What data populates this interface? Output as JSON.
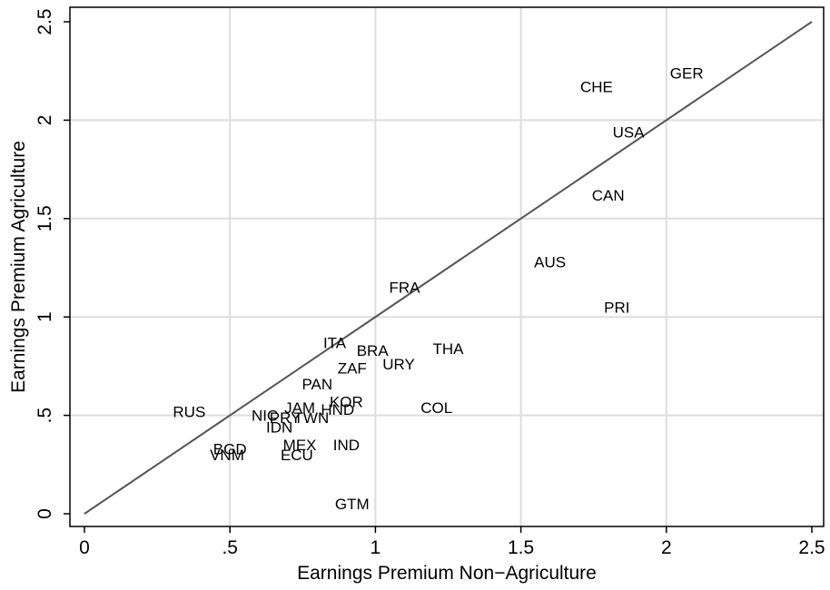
{
  "chart_data": {
    "type": "scatter",
    "xlabel": "Earnings Premium Non−Agriculture",
    "ylabel": "Earnings Premium Agriculture",
    "xlim": [
      0,
      2.5
    ],
    "ylim": [
      0,
      2.5
    ],
    "x_ticks": [
      0,
      0.5,
      1,
      1.5,
      2,
      2.5
    ],
    "x_tick_labels": [
      "0",
      ".5",
      "1",
      "1.5",
      "2",
      "2.5"
    ],
    "y_ticks": [
      0,
      0.5,
      1,
      1.5,
      2,
      2.5
    ],
    "y_tick_labels": [
      "0",
      ".5",
      "1",
      "1.5",
      "2",
      "2.5"
    ],
    "grid": "horizontal and vertical at ticks",
    "reference_line": {
      "type": "45-degree",
      "from": [
        0,
        0
      ],
      "to": [
        2.5,
        2.5
      ]
    },
    "colors": {
      "line": "#555555",
      "grid": "#dddddd",
      "frame": "#000000"
    },
    "points": [
      {
        "label": "GER",
        "x": 2.07,
        "y": 2.24
      },
      {
        "label": "CHE",
        "x": 1.76,
        "y": 2.17
      },
      {
        "label": "USA",
        "x": 1.87,
        "y": 1.94
      },
      {
        "label": "CAN",
        "x": 1.8,
        "y": 1.62
      },
      {
        "label": "AUS",
        "x": 1.6,
        "y": 1.28
      },
      {
        "label": "PRI",
        "x": 1.83,
        "y": 1.05
      },
      {
        "label": "FRA",
        "x": 1.1,
        "y": 1.15
      },
      {
        "label": "ITA",
        "x": 0.86,
        "y": 0.87
      },
      {
        "label": "BRA",
        "x": 0.99,
        "y": 0.83
      },
      {
        "label": "THA",
        "x": 1.25,
        "y": 0.84
      },
      {
        "label": "ZAF",
        "x": 0.92,
        "y": 0.74
      },
      {
        "label": "URY",
        "x": 1.08,
        "y": 0.76
      },
      {
        "label": "PAN",
        "x": 0.8,
        "y": 0.66
      },
      {
        "label": "KOR",
        "x": 0.9,
        "y": 0.57
      },
      {
        "label": "COL",
        "x": 1.21,
        "y": 0.54
      },
      {
        "label": "RUS",
        "x": 0.36,
        "y": 0.52
      },
      {
        "label": "JAM",
        "x": 0.74,
        "y": 0.54
      },
      {
        "label": "HND",
        "x": 0.87,
        "y": 0.53
      },
      {
        "label": "NIC",
        "x": 0.62,
        "y": 0.5
      },
      {
        "label": "PRY",
        "x": 0.69,
        "y": 0.49
      },
      {
        "label": "TWN",
        "x": 0.78,
        "y": 0.49
      },
      {
        "label": "IDN",
        "x": 0.67,
        "y": 0.44
      },
      {
        "label": "MEX",
        "x": 0.74,
        "y": 0.35
      },
      {
        "label": "IND",
        "x": 0.9,
        "y": 0.35
      },
      {
        "label": "BGD",
        "x": 0.5,
        "y": 0.33
      },
      {
        "label": "VNM",
        "x": 0.49,
        "y": 0.3
      },
      {
        "label": "ECU",
        "x": 0.73,
        "y": 0.3
      },
      {
        "label": "GTM",
        "x": 0.92,
        "y": 0.05
      }
    ]
  }
}
